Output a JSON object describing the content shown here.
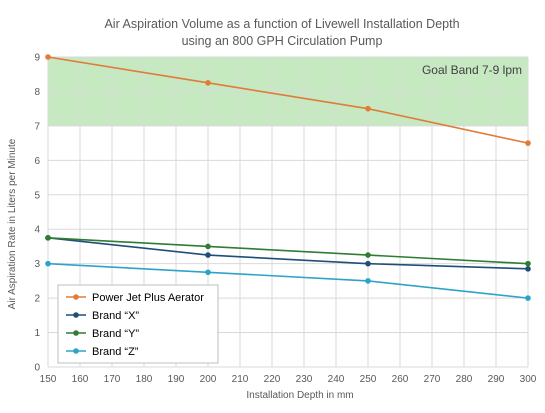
{
  "chart_data": {
    "type": "line",
    "title_lines": [
      "Air Aspiration Volume as a function of Livewell Installation Depth",
      "using an 800 GPH Circulation Pump"
    ],
    "xlabel": "Installation Depth in mm",
    "ylabel": "Air Aspiration Rate in Liters per Minute",
    "xlim": [
      150,
      300
    ],
    "ylim": [
      0,
      9
    ],
    "x_ticks": [
      "150",
      "160",
      "170",
      "180",
      "190",
      "200",
      "210",
      "220",
      "230",
      "240",
      "250",
      "260",
      "270",
      "280",
      "290",
      "300"
    ],
    "y_ticks": [
      "0",
      "1",
      "2",
      "3",
      "4",
      "5",
      "6",
      "7",
      "8",
      "9"
    ],
    "grid": true,
    "band": {
      "label": "Goal Band 7-9 lpm",
      "from": 7,
      "to": 9,
      "color": "#c6e9c2"
    },
    "legend_position": "bottom-left",
    "series": [
      {
        "name": "Power Jet Plus Aerator",
        "color": "#e07b39",
        "x": [
          150,
          200,
          250,
          300
        ],
        "y": [
          9.0,
          8.25,
          7.5,
          6.5
        ]
      },
      {
        "name": "Brand “X”",
        "color": "#1f4e79",
        "x": [
          150,
          200,
          250,
          300
        ],
        "y": [
          3.75,
          3.25,
          3.0,
          2.85
        ]
      },
      {
        "name": "Brand “Y”",
        "color": "#2e7d32",
        "x": [
          150,
          200,
          250,
          300
        ],
        "y": [
          3.75,
          3.5,
          3.25,
          3.0
        ]
      },
      {
        "name": "Brand “Z”",
        "color": "#2ea3c8",
        "x": [
          150,
          200,
          250,
          300
        ],
        "y": [
          3.0,
          2.75,
          2.5,
          2.0
        ]
      }
    ]
  }
}
